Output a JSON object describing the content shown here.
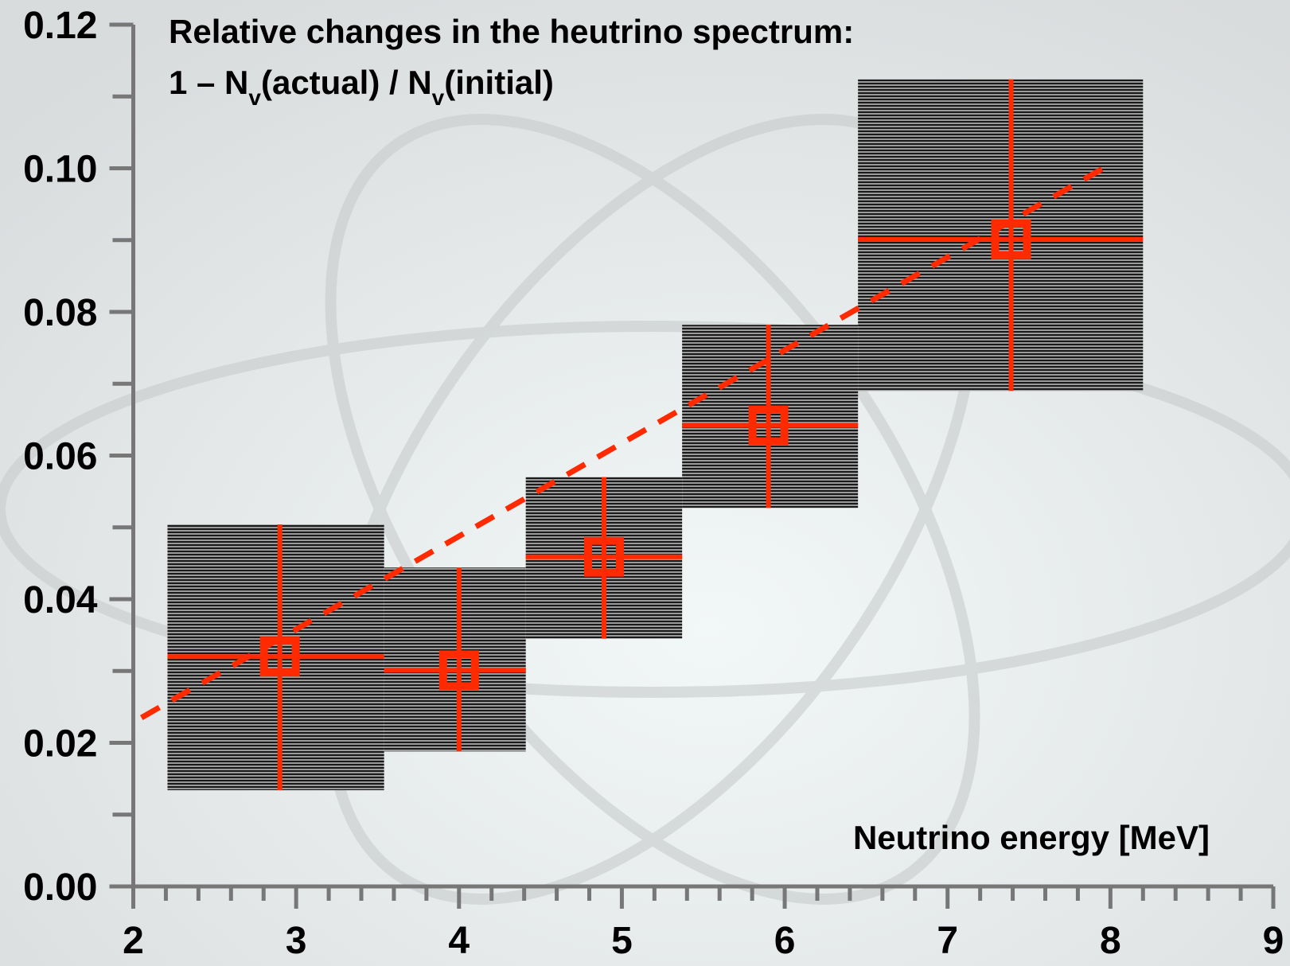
{
  "chart_data": {
    "type": "errorbox",
    "title": "Relative changes in the heutrino spectrum:",
    "subtitle_parts": [
      "1 – N",
      "v",
      "(actual) / N",
      "v",
      "(initial)"
    ],
    "x_label": "Neutrino energy  [MeV]",
    "color": "#ff2a00",
    "box_color": "#3a3a3a",
    "x": [
      2.9,
      4.0,
      4.89,
      5.9,
      7.39
    ],
    "values": [
      0.032,
      0.0301,
      0.0459,
      0.0642,
      0.0901
    ],
    "x_low": [
      2.21,
      3.54,
      4.41,
      5.37,
      6.45
    ],
    "x_high": [
      3.54,
      4.41,
      5.37,
      6.45,
      8.2
    ],
    "y_low": [
      0.0134,
      0.0188,
      0.0345,
      0.0527,
      0.069
    ],
    "y_high": [
      0.0504,
      0.0444,
      0.057,
      0.0782,
      0.1124
    ],
    "fit": {
      "x": [
        2.05,
        8.01
      ],
      "values": [
        0.0235,
        0.1007
      ]
    },
    "xlim": [
      2,
      9
    ],
    "ylim": [
      0,
      0.12
    ],
    "xticks": [
      2,
      3,
      4,
      5,
      6,
      7,
      8,
      9
    ],
    "xminor": [
      2.2,
      2.4,
      2.6,
      2.8,
      3.2,
      3.4,
      3.6,
      3.8,
      4.2,
      4.4,
      4.6,
      4.8,
      5.2,
      5.4,
      5.6,
      5.8,
      6.2,
      6.4,
      6.6,
      6.8,
      7.2,
      7.4,
      7.6,
      7.8,
      8.2,
      8.4,
      8.6,
      8.8
    ],
    "yticks": [
      {
        "value": 0,
        "label": "0.00"
      },
      {
        "value": 0.02,
        "label": "0.02"
      },
      {
        "value": 0.04,
        "label": "0.04"
      },
      {
        "value": 0.06,
        "label": "0.06"
      },
      {
        "value": 0.08,
        "label": "0.08"
      },
      {
        "value": 0.1,
        "label": "0.10"
      },
      {
        "value": 0.12,
        "label": "0.12"
      }
    ],
    "yminor": [
      0.01,
      0.03,
      0.05,
      0.07,
      0.09,
      0.11
    ]
  }
}
